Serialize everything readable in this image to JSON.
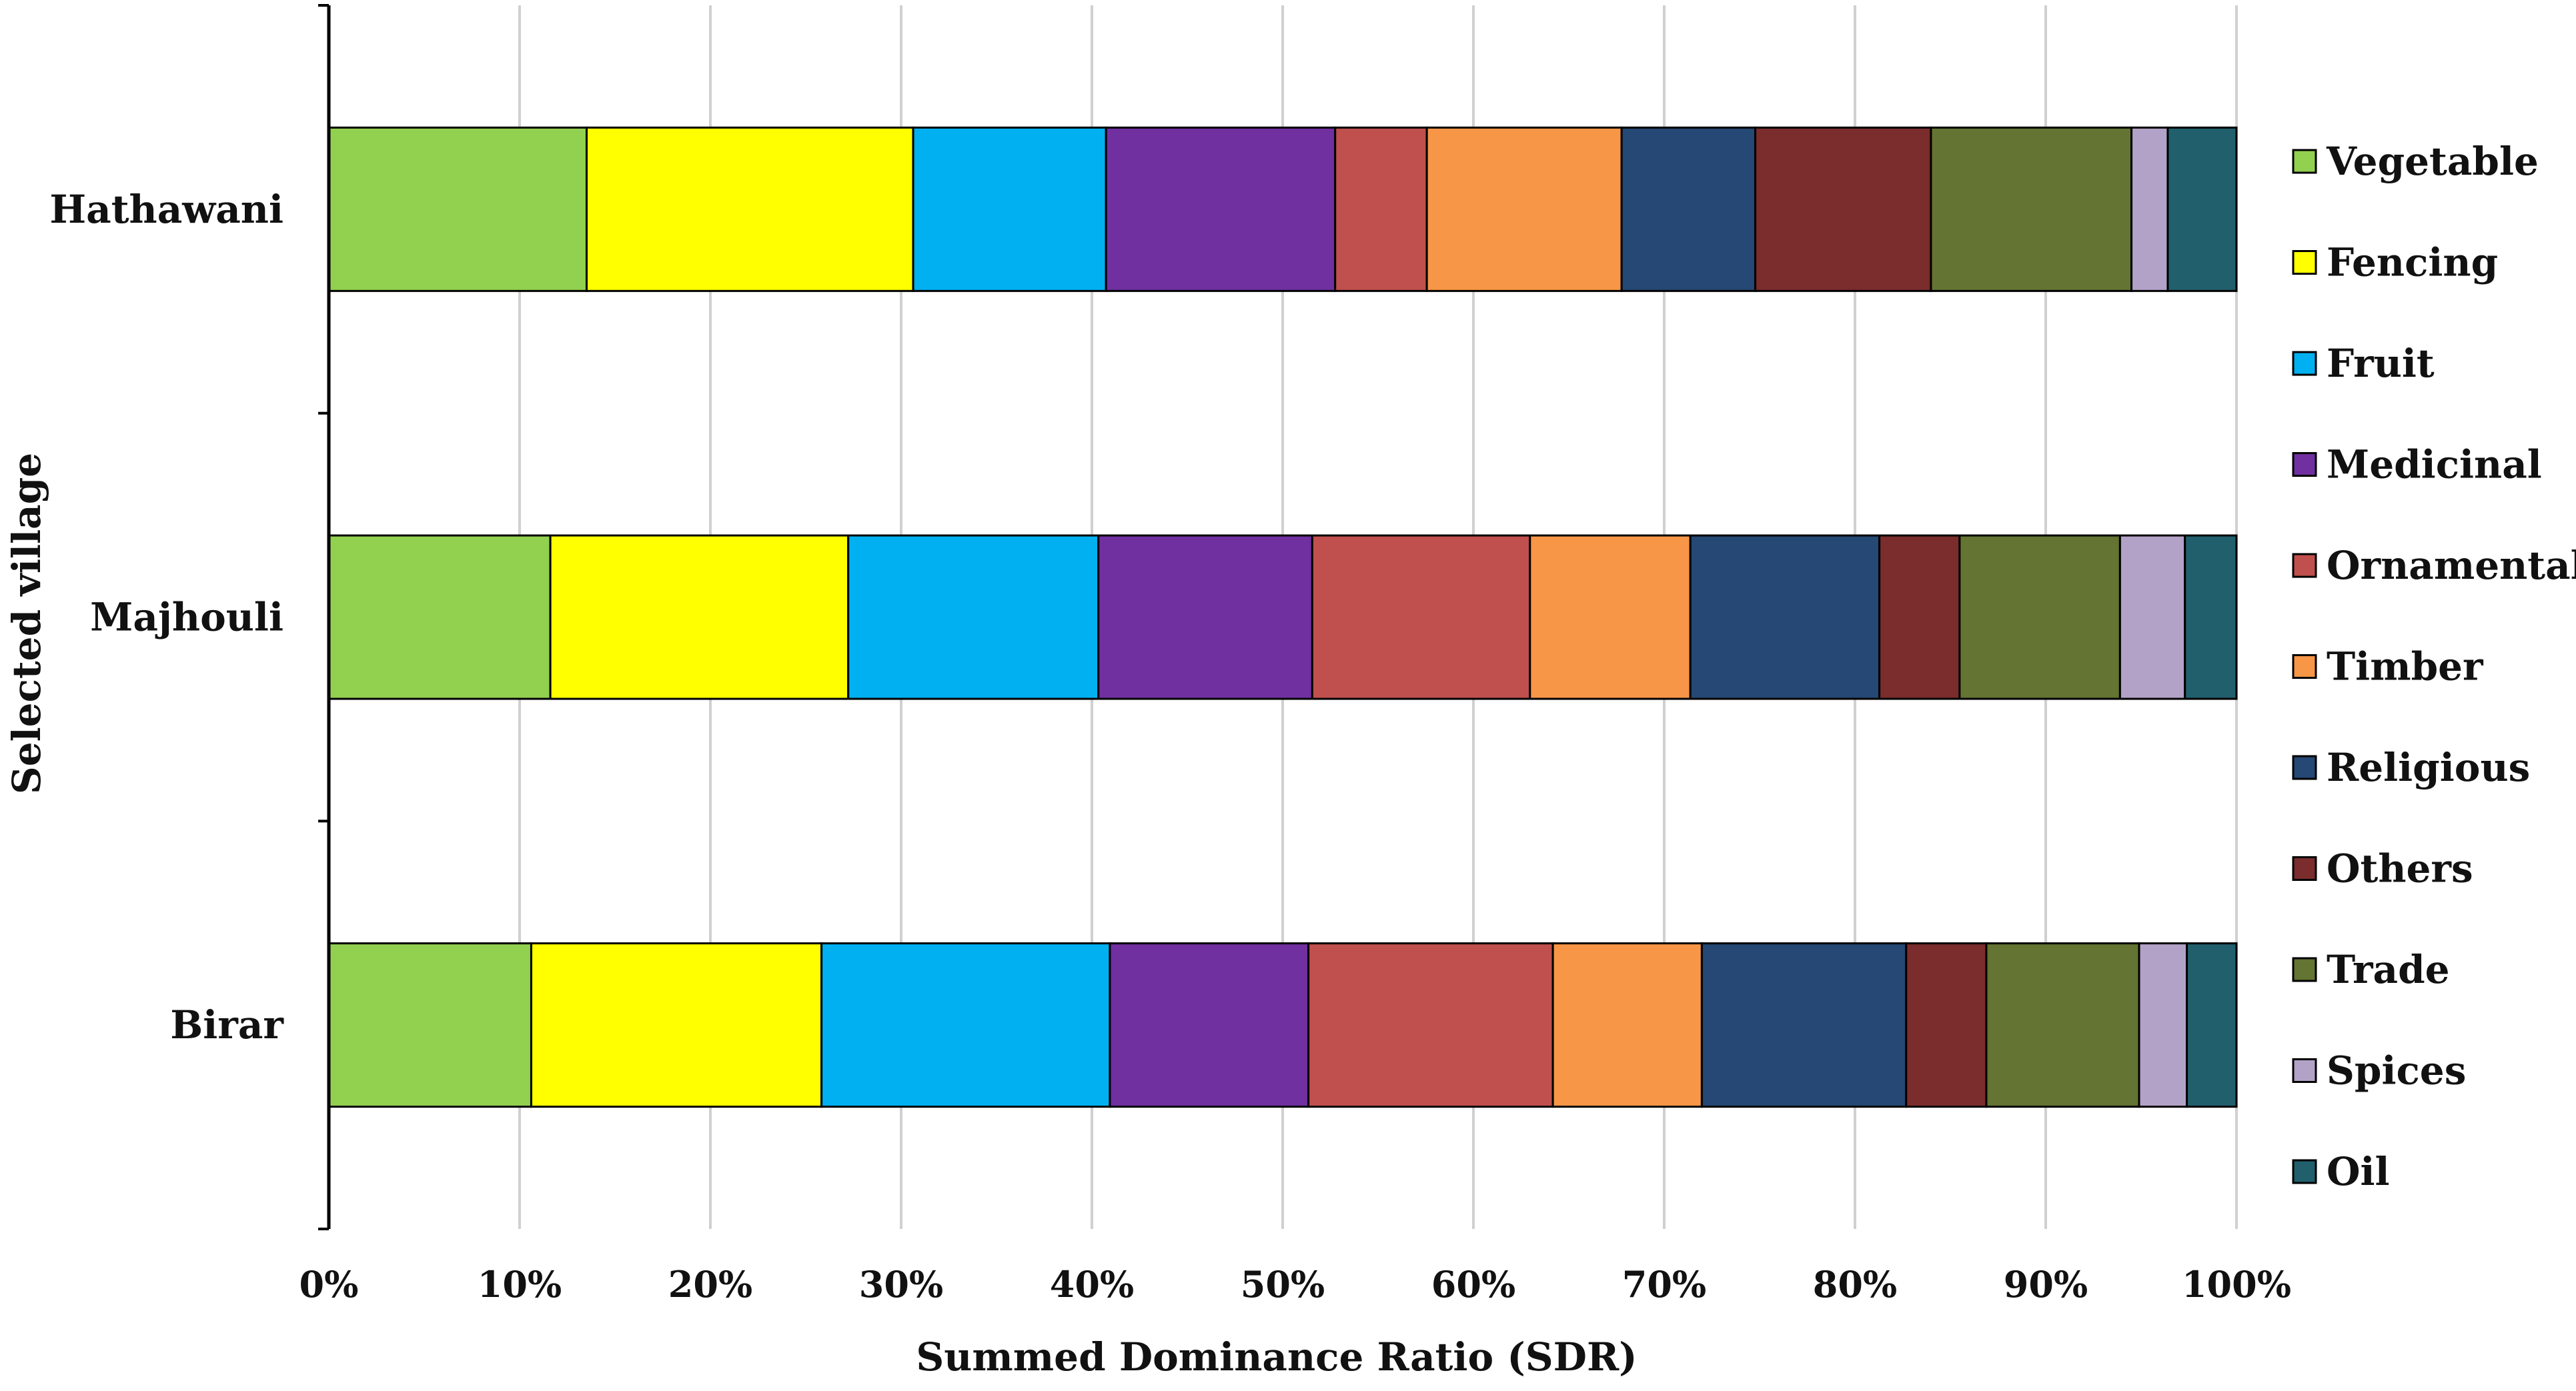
{
  "chart_data": {
    "type": "bar",
    "orientation": "horizontal",
    "stacked": "percent",
    "categories": [
      "Hathawani",
      "Majhouli",
      "Birar"
    ],
    "xlabel": "Summed Dominance Ratio (SDR)",
    "ylabel": "Selected village",
    "xlim": [
      0,
      100
    ],
    "x_ticks": [
      "0%",
      "10%",
      "20%",
      "30%",
      "40%",
      "50%",
      "60%",
      "70%",
      "80%",
      "90%",
      "100%"
    ],
    "grid": "vertical",
    "legend_position": "right",
    "series": [
      {
        "name": "Vegetable",
        "color": "#92d050",
        "values": [
          13.5,
          11.6,
          10.6
        ]
      },
      {
        "name": "Fencing",
        "color": "#ffff00",
        "values": [
          17.1,
          15.6,
          15.2
        ]
      },
      {
        "name": "Fruit",
        "color": "#00b0f0",
        "values": [
          10.1,
          13.1,
          15.1
        ]
      },
      {
        "name": "Medicinal",
        "color": "#7030a0",
        "values": [
          12.0,
          11.2,
          10.4
        ]
      },
      {
        "name": "Ornamental",
        "color": "#c0504d",
        "values": [
          4.8,
          11.4,
          12.8
        ]
      },
      {
        "name": "Timber",
        "color": "#f79646",
        "values": [
          10.2,
          8.4,
          7.8
        ]
      },
      {
        "name": "Religious",
        "color": "#254874",
        "values": [
          7.0,
          9.9,
          10.7
        ]
      },
      {
        "name": "Others",
        "color": "#7b2c2c",
        "values": [
          9.2,
          4.2,
          4.2
        ]
      },
      {
        "name": "Trade",
        "color": "#647432",
        "values": [
          10.5,
          8.4,
          8.0
        ]
      },
      {
        "name": "Spices",
        "color": "#b3a2c7",
        "values": [
          1.9,
          3.4,
          2.5
        ]
      },
      {
        "name": "Oil",
        "color": "#215f6d",
        "values": [
          3.6,
          2.7,
          2.6
        ]
      }
    ]
  }
}
